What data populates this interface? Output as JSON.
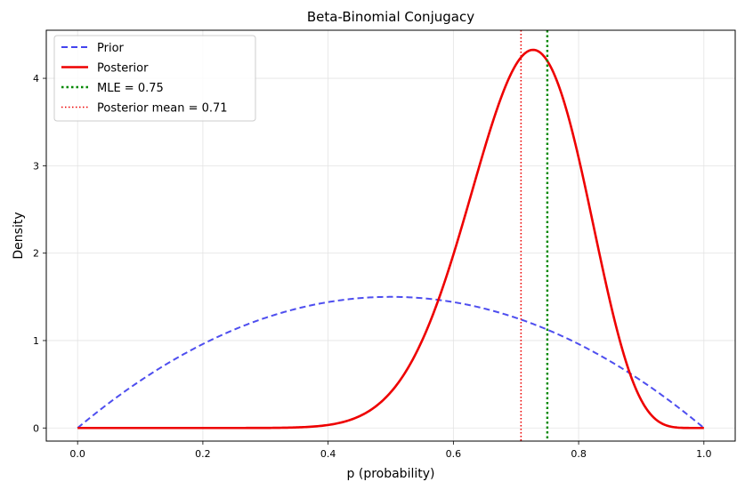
{
  "chart_data": {
    "type": "line",
    "title": "Beta-Binomial Conjugacy",
    "xlabel": "p (probability)",
    "ylabel": "Density",
    "xlim": [
      -0.05,
      1.05
    ],
    "ylim": [
      -0.15,
      4.55
    ],
    "grid": true,
    "legend_position": "top-left",
    "x_ticks": [
      0.0,
      0.2,
      0.4,
      0.6,
      0.8,
      1.0
    ],
    "x_tick_labels": [
      "0.0",
      "0.2",
      "0.4",
      "0.6",
      "0.8",
      "1.0"
    ],
    "y_ticks": [
      0,
      1,
      2,
      3,
      4
    ],
    "y_tick_labels": [
      "0",
      "1",
      "2",
      "3",
      "4"
    ],
    "series": [
      {
        "name": "Prior",
        "kind": "curve",
        "dist": "beta",
        "alpha": 2,
        "beta": 2,
        "color": "#4444ee",
        "style": "dashed"
      },
      {
        "name": "Posterior",
        "kind": "curve",
        "dist": "beta",
        "alpha": 17,
        "beta": 7,
        "color": "#ee0000",
        "style": "solid"
      },
      {
        "name": "MLE = 0.75",
        "kind": "vline",
        "x": 0.75,
        "color": "#008800",
        "style": "dotted-thick"
      },
      {
        "name": "Posterior mean = 0.71",
        "kind": "vline",
        "x": 0.708,
        "color": "#ee0000",
        "style": "dotted"
      }
    ]
  }
}
